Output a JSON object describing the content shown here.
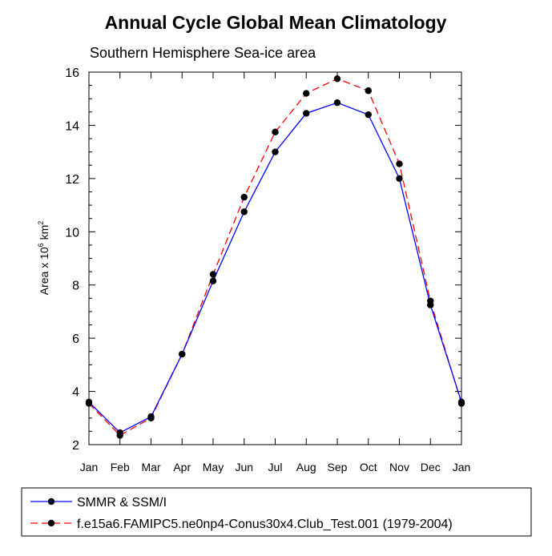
{
  "chart_data": {
    "type": "line",
    "title": "Annual Cycle Global Mean Climatology",
    "subtitle": "Southern Hemisphere Sea-ice area",
    "ylabel": {
      "text": "Area x 10",
      "sup1": "6",
      "mid": " km",
      "sup2": "2"
    },
    "xlabel": "",
    "categories": [
      "Jan",
      "Feb",
      "Mar",
      "Apr",
      "May",
      "Jun",
      "Jul",
      "Aug",
      "Sep",
      "Oct",
      "Nov",
      "Dec",
      "Jan"
    ],
    "ylim": [
      2,
      16
    ],
    "yticks": [
      2,
      4,
      6,
      8,
      10,
      12,
      14,
      16
    ],
    "grid": false,
    "legend_position": "bottom",
    "series": [
      {
        "name": "SMMR & SSM/I",
        "color": "#0000ff",
        "dash": "solid",
        "values": [
          3.6,
          2.45,
          3.05,
          5.4,
          8.15,
          10.75,
          13.0,
          14.45,
          14.85,
          14.4,
          12.0,
          7.25,
          3.6
        ]
      },
      {
        "name": "f.e15a6.FAMIPC5.ne0np4-Conus30x4.Club_Test.001 (1979-2004)",
        "color": "#ff0000",
        "dash": "dashed",
        "values": [
          3.55,
          2.35,
          3.0,
          5.4,
          8.4,
          11.3,
          13.75,
          15.2,
          15.75,
          15.3,
          12.55,
          7.4,
          3.55
        ]
      }
    ]
  }
}
